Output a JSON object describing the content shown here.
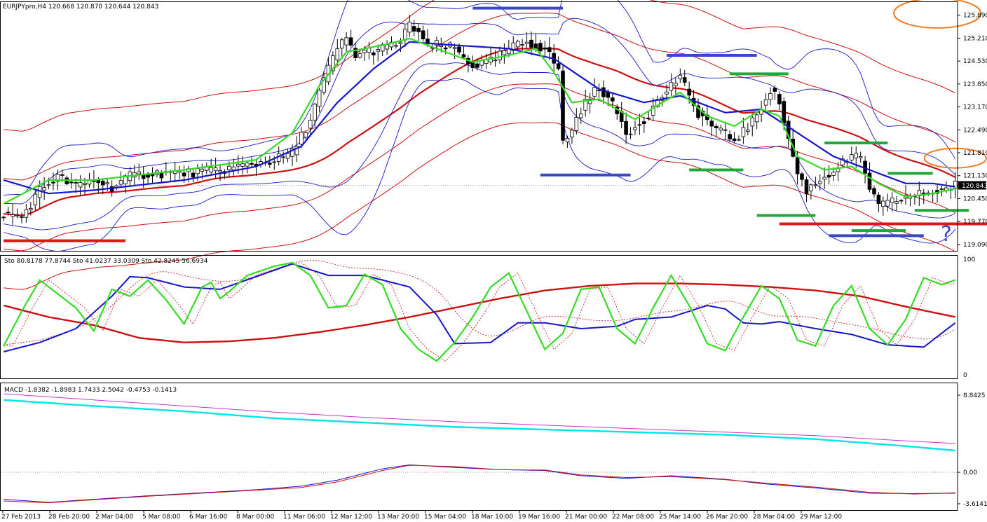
{
  "colors": {
    "background": "#ffffff",
    "frame": "#000000",
    "bull_candle": "#ffffff",
    "bear_candle": "#000000",
    "ma_fast": "#33dd22",
    "ma_slow": "#1515cc",
    "bands": "#1818c8",
    "envelope": "#cc1111",
    "stoch_main": "#33dd22",
    "stoch_signal": "#cc1111",
    "macd_main": "#00e5e5",
    "macd_signal": "#cc33cc",
    "blue_level": "#3a48c8",
    "green_level": "#22a83a",
    "red_level": "#e01515",
    "orange_circle": "#ee7d22",
    "price_tag": "#000000"
  },
  "chart_data": [
    {
      "type": "line",
      "pane": "price",
      "header": "EURJPYpro,H4  120.668 120.870 120.644 120.843",
      "x_categories": [
        "27 Feb 2013",
        "28 Feb 20:00",
        "2 Mar 04:00",
        "5 Mar 08:00",
        "6 Mar 16:00",
        "8 Mar 00:00",
        "11 Mar 06:00",
        "12 Mar 12:00",
        "13 Mar 20:00",
        "15 Mar 04:00",
        "18 Mar 10:00",
        "19 Mar 16:00",
        "21 Mar 00:00",
        "22 Mar 08:00",
        "25 Mar 14:00",
        "26 Mar 20:00",
        "28 Mar 04:00",
        "29 Mar 12:00"
      ],
      "y_ticks": [
        "125.890",
        "125.210",
        "124.530",
        "123.850",
        "123.170",
        "122.490",
        "121.810",
        "121.130",
        "120.450",
        "119.770",
        "119.090"
      ],
      "ylim": [
        118.9,
        126.3
      ],
      "last_price": "120.843",
      "close_path": [
        [
          0,
          120.0
        ],
        [
          4,
          119.9
        ],
        [
          8,
          120.7
        ],
        [
          12,
          121.1
        ],
        [
          16,
          120.8
        ],
        [
          20,
          121.0
        ],
        [
          24,
          120.8
        ],
        [
          28,
          121.1
        ],
        [
          32,
          121.2
        ],
        [
          40,
          121.2
        ],
        [
          48,
          121.3
        ],
        [
          56,
          121.5
        ],
        [
          60,
          121.6
        ],
        [
          64,
          121.8
        ],
        [
          68,
          122.8
        ],
        [
          70,
          123.6
        ],
        [
          72,
          124.3
        ],
        [
          74,
          124.9
        ],
        [
          76,
          125.2
        ],
        [
          78,
          124.7
        ],
        [
          80,
          124.8
        ],
        [
          84,
          124.9
        ],
        [
          88,
          125.1
        ],
        [
          90,
          125.6
        ],
        [
          92,
          125.4
        ],
        [
          94,
          124.9
        ],
        [
          96,
          125.0
        ],
        [
          100,
          124.9
        ],
        [
          104,
          124.4
        ],
        [
          108,
          124.5
        ],
        [
          112,
          124.9
        ],
        [
          116,
          125.1
        ],
        [
          120,
          124.9
        ],
        [
          123,
          124.3
        ],
        [
          124,
          122.1
        ],
        [
          126,
          122.5
        ],
        [
          128,
          123.1
        ],
        [
          132,
          123.8
        ],
        [
          134,
          123.4
        ],
        [
          136,
          123.0
        ],
        [
          138,
          122.4
        ],
        [
          142,
          122.8
        ],
        [
          146,
          123.5
        ],
        [
          150,
          124.1
        ],
        [
          152,
          123.4
        ],
        [
          154,
          123.0
        ],
        [
          158,
          122.5
        ],
        [
          162,
          122.2
        ],
        [
          166,
          122.7
        ],
        [
          170,
          123.7
        ],
        [
          172,
          123.3
        ],
        [
          174,
          122.2
        ],
        [
          176,
          121.2
        ],
        [
          178,
          120.7
        ],
        [
          182,
          121.1
        ],
        [
          186,
          121.5
        ],
        [
          188,
          121.7
        ],
        [
          190,
          121.6
        ],
        [
          192,
          120.8
        ],
        [
          194,
          120.2
        ],
        [
          198,
          120.4
        ],
        [
          200,
          120.5
        ],
        [
          204,
          120.6
        ],
        [
          208,
          120.7
        ],
        [
          211,
          120.843
        ]
      ],
      "ma_fast": [
        [
          0,
          120.3
        ],
        [
          10,
          121.0
        ],
        [
          20,
          121.0
        ],
        [
          40,
          121.3
        ],
        [
          56,
          121.6
        ],
        [
          64,
          122.4
        ],
        [
          70,
          123.8
        ],
        [
          76,
          124.8
        ],
        [
          84,
          125.0
        ],
        [
          90,
          125.2
        ],
        [
          96,
          124.9
        ],
        [
          104,
          124.5
        ],
        [
          112,
          124.7
        ],
        [
          118,
          124.9
        ],
        [
          122,
          124.2
        ],
        [
          126,
          123.3
        ],
        [
          132,
          123.4
        ],
        [
          140,
          122.8
        ],
        [
          146,
          123.3
        ],
        [
          150,
          123.6
        ],
        [
          156,
          122.9
        ],
        [
          162,
          122.6
        ],
        [
          168,
          123.1
        ],
        [
          172,
          122.9
        ],
        [
          176,
          121.7
        ],
        [
          182,
          121.3
        ],
        [
          188,
          121.4
        ],
        [
          194,
          120.9
        ],
        [
          200,
          120.5
        ],
        [
          206,
          120.6
        ],
        [
          211,
          120.75
        ]
      ],
      "ma_slow": [
        [
          0,
          121.0
        ],
        [
          10,
          120.6
        ],
        [
          20,
          120.7
        ],
        [
          40,
          121.0
        ],
        [
          56,
          121.4
        ],
        [
          66,
          122.0
        ],
        [
          74,
          123.3
        ],
        [
          82,
          124.3
        ],
        [
          90,
          125.1
        ],
        [
          100,
          125.0
        ],
        [
          112,
          124.9
        ],
        [
          122,
          124.6
        ],
        [
          132,
          123.7
        ],
        [
          142,
          123.3
        ],
        [
          150,
          123.5
        ],
        [
          160,
          123.0
        ],
        [
          168,
          123.1
        ],
        [
          176,
          122.4
        ],
        [
          184,
          121.7
        ],
        [
          192,
          121.3
        ],
        [
          200,
          120.9
        ],
        [
          206,
          120.9
        ],
        [
          211,
          120.8
        ]
      ],
      "blue_levels": [
        [
          104,
          124,
          126.1
        ],
        [
          119,
          139,
          121.15
        ],
        [
          147,
          167,
          124.7
        ],
        [
          183,
          204,
          119.35
        ]
      ],
      "green_levels": [
        [
          161,
          174,
          124.15
        ],
        [
          152,
          164,
          121.3
        ],
        [
          182,
          196,
          122.1
        ],
        [
          167,
          180,
          119.95
        ],
        [
          196,
          206,
          121.2
        ],
        [
          202,
          214,
          120.1
        ],
        [
          188,
          200,
          119.5
        ]
      ],
      "red_levels": [
        [
          0,
          27,
          119.2
        ],
        [
          172,
          224,
          119.7
        ]
      ],
      "annotations": [
        {
          "kind": "ellipse",
          "x": 207,
          "y": 125.95
        },
        {
          "kind": "ellipse",
          "x": 211,
          "y": 121.65
        },
        {
          "kind": "question",
          "text": "?",
          "x": 229,
          "y": 119.65
        },
        {
          "kind": "question",
          "text": "?",
          "x": 209,
          "y": 119.4
        }
      ]
    },
    {
      "type": "line",
      "pane": "stochastic",
      "header": "Sto 80.8178 77.8744  Sto 41.0237 33.0309  Sto 42.8245 56.6934",
      "y_ticks": [
        "100",
        "0"
      ],
      "ylim": [
        0,
        100
      ],
      "fast": [
        [
          0,
          25
        ],
        [
          4,
          55
        ],
        [
          8,
          82
        ],
        [
          12,
          70
        ],
        [
          16,
          58
        ],
        [
          20,
          38
        ],
        [
          24,
          74
        ],
        [
          28,
          68
        ],
        [
          32,
          82
        ],
        [
          36,
          65
        ],
        [
          40,
          44
        ],
        [
          44,
          76
        ],
        [
          46,
          80
        ],
        [
          48,
          66
        ],
        [
          50,
          72
        ],
        [
          54,
          86
        ],
        [
          60,
          94
        ],
        [
          64,
          97
        ],
        [
          68,
          86
        ],
        [
          72,
          58
        ],
        [
          76,
          60
        ],
        [
          80,
          87
        ],
        [
          84,
          78
        ],
        [
          88,
          40
        ],
        [
          92,
          22
        ],
        [
          96,
          12
        ],
        [
          100,
          28
        ],
        [
          104,
          50
        ],
        [
          108,
          76
        ],
        [
          112,
          88
        ],
        [
          116,
          55
        ],
        [
          120,
          22
        ],
        [
          124,
          36
        ],
        [
          128,
          74
        ],
        [
          132,
          76
        ],
        [
          136,
          40
        ],
        [
          140,
          27
        ],
        [
          144,
          58
        ],
        [
          148,
          86
        ],
        [
          152,
          60
        ],
        [
          156,
          27
        ],
        [
          160,
          21
        ],
        [
          164,
          50
        ],
        [
          168,
          77
        ],
        [
          172,
          66
        ],
        [
          176,
          30
        ],
        [
          180,
          25
        ],
        [
          184,
          60
        ],
        [
          188,
          77
        ],
        [
          192,
          40
        ],
        [
          196,
          26
        ],
        [
          200,
          48
        ],
        [
          204,
          84
        ],
        [
          208,
          78
        ],
        [
          211,
          82
        ]
      ],
      "slow": [
        [
          0,
          20
        ],
        [
          8,
          28
        ],
        [
          16,
          40
        ],
        [
          24,
          68
        ],
        [
          28,
          85
        ],
        [
          32,
          84
        ],
        [
          40,
          76
        ],
        [
          48,
          74
        ],
        [
          56,
          85
        ],
        [
          64,
          96
        ],
        [
          72,
          86
        ],
        [
          80,
          86
        ],
        [
          84,
          82
        ],
        [
          90,
          76
        ],
        [
          96,
          52
        ],
        [
          100,
          27
        ],
        [
          108,
          28
        ],
        [
          114,
          45
        ],
        [
          120,
          45
        ],
        [
          128,
          40
        ],
        [
          136,
          42
        ],
        [
          140,
          48
        ],
        [
          148,
          50
        ],
        [
          156,
          60
        ],
        [
          160,
          57
        ],
        [
          164,
          45
        ],
        [
          168,
          44
        ],
        [
          172,
          46
        ],
        [
          180,
          40
        ],
        [
          188,
          35
        ],
        [
          196,
          26
        ],
        [
          204,
          24
        ],
        [
          211,
          45
        ]
      ],
      "ma_long": [
        [
          0,
          60
        ],
        [
          10,
          50
        ],
        [
          20,
          43
        ],
        [
          30,
          32
        ],
        [
          40,
          28
        ],
        [
          50,
          29
        ],
        [
          60,
          32
        ],
        [
          70,
          37
        ],
        [
          80,
          43
        ],
        [
          90,
          50
        ],
        [
          100,
          58
        ],
        [
          110,
          66
        ],
        [
          120,
          73
        ],
        [
          130,
          77
        ],
        [
          140,
          79
        ],
        [
          150,
          79
        ],
        [
          160,
          78
        ],
        [
          170,
          76
        ],
        [
          180,
          73
        ],
        [
          190,
          68
        ],
        [
          200,
          59
        ],
        [
          211,
          50
        ]
      ]
    },
    {
      "type": "line",
      "pane": "macd",
      "header": "MACD -1.8382 -1.8983 1.7433 2.5042 -0.4753 -0.1413",
      "y_ticks": [
        "8.8425",
        "0.00",
        "-3.6141"
      ],
      "ylim": [
        -4.3,
        9.4
      ],
      "main": [
        [
          0,
          8.3
        ],
        [
          20,
          7.6
        ],
        [
          40,
          7.0
        ],
        [
          60,
          6.2
        ],
        [
          80,
          5.7
        ],
        [
          100,
          5.2
        ],
        [
          120,
          4.9
        ],
        [
          140,
          4.6
        ],
        [
          160,
          4.3
        ],
        [
          180,
          3.8
        ],
        [
          200,
          3.0
        ],
        [
          211,
          2.5
        ]
      ],
      "signal": [
        [
          0,
          9.0
        ],
        [
          20,
          8.3
        ],
        [
          40,
          7.6
        ],
        [
          60,
          6.9
        ],
        [
          80,
          6.3
        ],
        [
          100,
          5.8
        ],
        [
          120,
          5.4
        ],
        [
          140,
          5.0
        ],
        [
          160,
          4.6
        ],
        [
          180,
          4.2
        ],
        [
          200,
          3.6
        ],
        [
          211,
          3.3
        ]
      ],
      "hist_a": [
        [
          0,
          -3.1
        ],
        [
          10,
          -3.45
        ],
        [
          20,
          -3.1
        ],
        [
          32,
          -2.7
        ],
        [
          44,
          -2.35
        ],
        [
          56,
          -2.0
        ],
        [
          66,
          -1.6
        ],
        [
          74,
          -0.9
        ],
        [
          84,
          0.4
        ],
        [
          90,
          0.85
        ],
        [
          100,
          0.55
        ],
        [
          110,
          0.3
        ],
        [
          120,
          0.2
        ],
        [
          128,
          -0.4
        ],
        [
          138,
          -0.7
        ],
        [
          148,
          -0.4
        ],
        [
          160,
          -0.8
        ],
        [
          168,
          -1.3
        ],
        [
          180,
          -1.8
        ],
        [
          192,
          -2.4
        ],
        [
          202,
          -2.45
        ],
        [
          211,
          -2.4
        ]
      ],
      "hist_b": [
        [
          0,
          -3.3
        ],
        [
          10,
          -3.5
        ],
        [
          20,
          -3.15
        ],
        [
          32,
          -2.75
        ],
        [
          44,
          -2.4
        ],
        [
          56,
          -2.05
        ],
        [
          66,
          -1.75
        ],
        [
          74,
          -1.1
        ],
        [
          84,
          0.2
        ],
        [
          90,
          0.8
        ],
        [
          100,
          0.65
        ],
        [
          110,
          0.3
        ],
        [
          120,
          0.25
        ],
        [
          128,
          -0.3
        ],
        [
          138,
          -0.6
        ],
        [
          148,
          -0.5
        ],
        [
          160,
          -0.85
        ],
        [
          168,
          -1.2
        ],
        [
          180,
          -1.7
        ],
        [
          192,
          -2.3
        ],
        [
          202,
          -2.5
        ],
        [
          211,
          -2.35
        ]
      ]
    }
  ]
}
